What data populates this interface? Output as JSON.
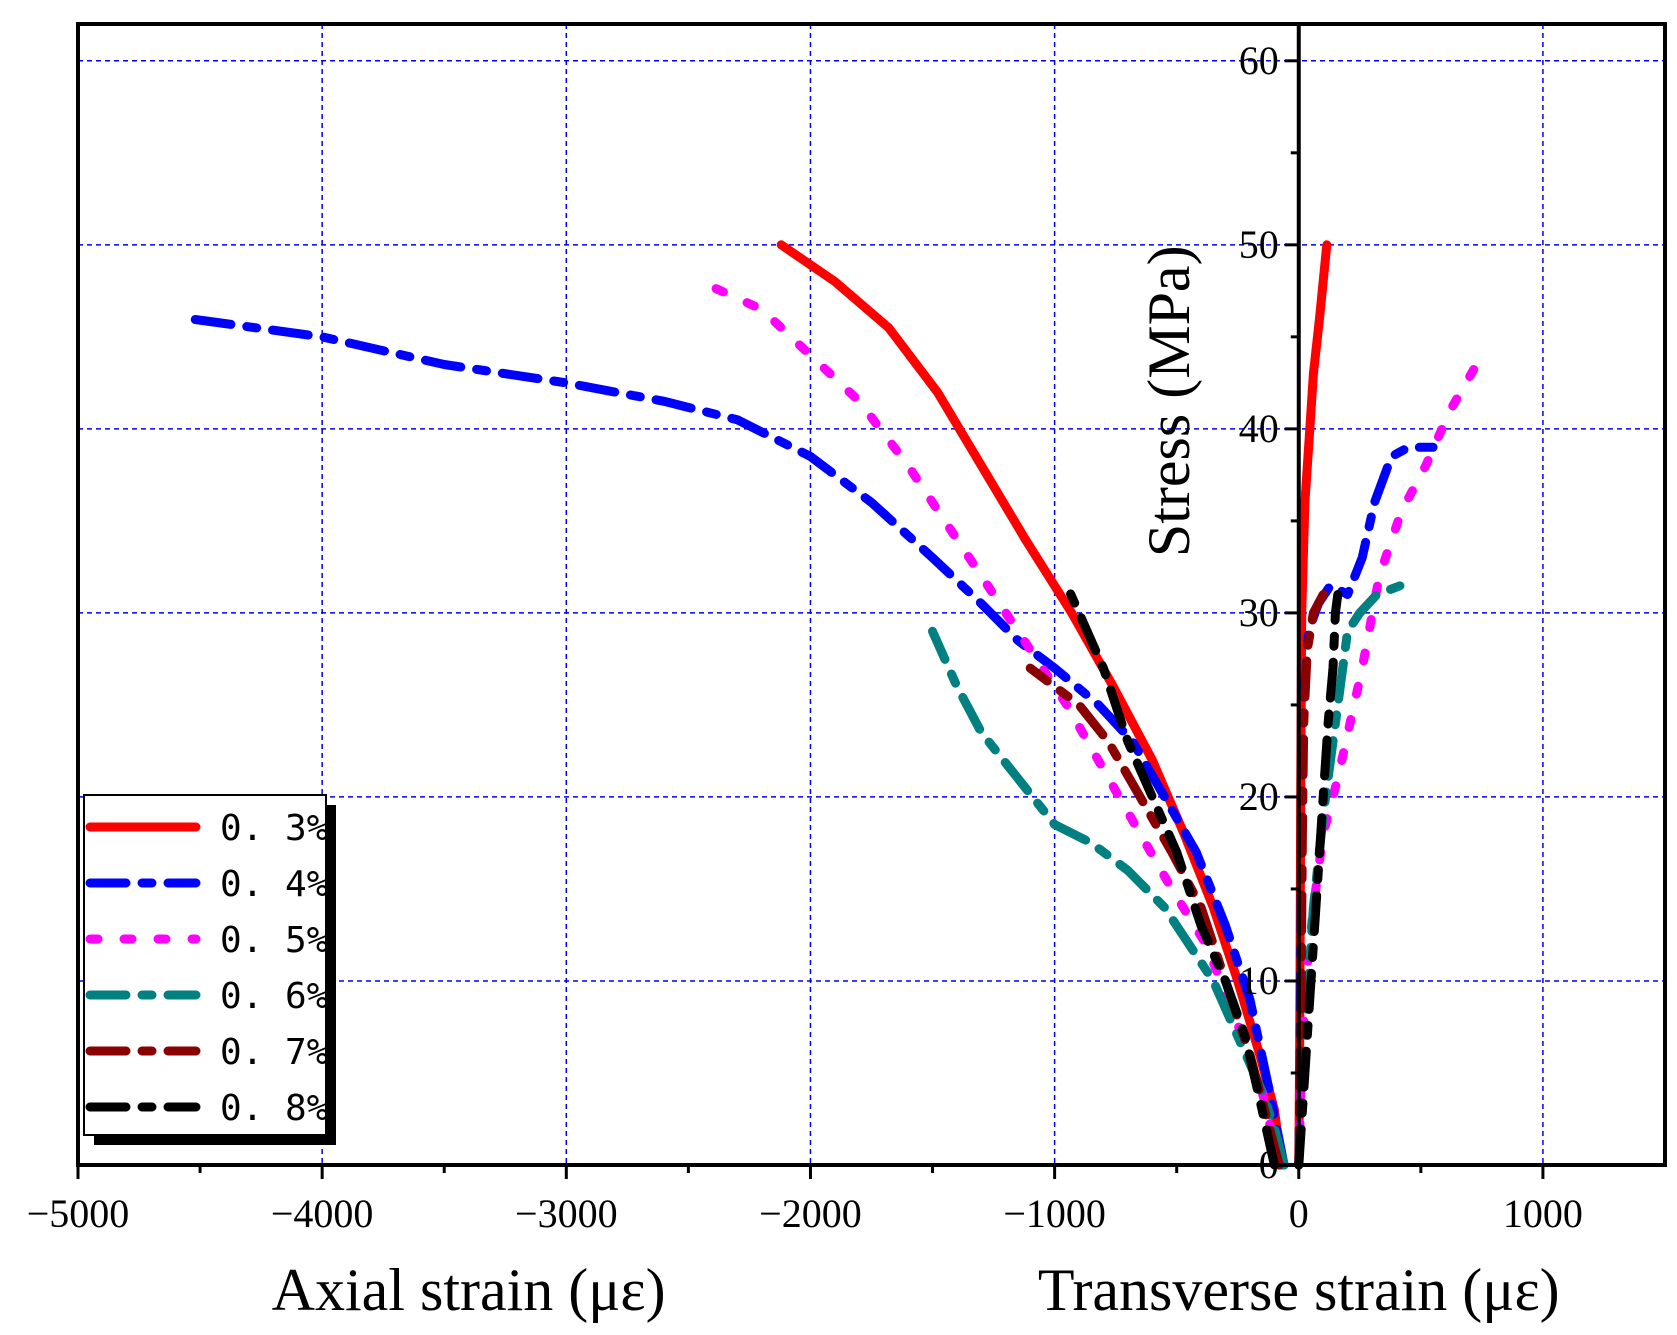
{
  "chart_data": {
    "type": "line",
    "xlim": [
      -5000,
      1500
    ],
    "ylim": [
      0,
      62
    ],
    "grid": true,
    "grid_color": "#0000ee",
    "x_ticks": [
      -5000,
      -4000,
      -3000,
      -2000,
      -1000,
      0,
      1000
    ],
    "x_tick_labels": [
      "−5000",
      "−4000",
      "−3000",
      "−2000",
      "−1000",
      "0",
      "1000"
    ],
    "y_ticks": [
      0,
      10,
      20,
      30,
      40,
      50,
      60
    ],
    "y_tick_labels": [
      "0",
      "10",
      "20",
      "30",
      "40",
      "50",
      "60"
    ],
    "xlabel_left": "Axial strain (με)",
    "xlabel_right": "Transverse strain (με)",
    "ylabel": "Stress (MPa)",
    "legend_position": "bottom-left",
    "series": [
      {
        "name": "0. 3%",
        "color": "#ff0000",
        "dash": "solid",
        "width": 9,
        "axial": [
          [
            -70,
            0
          ],
          [
            -100,
            3
          ],
          [
            -160,
            6
          ],
          [
            -250,
            10
          ],
          [
            -350,
            14
          ],
          [
            -470,
            18
          ],
          [
            -600,
            22
          ],
          [
            -760,
            26
          ],
          [
            -930,
            30
          ],
          [
            -1120,
            34
          ],
          [
            -1300,
            38
          ],
          [
            -1480,
            42
          ],
          [
            -1680,
            45.5
          ],
          [
            -1900,
            48
          ],
          [
            -2120,
            50
          ]
        ],
        "transverse": [
          [
            0,
            0
          ],
          [
            3,
            5
          ],
          [
            5,
            10
          ],
          [
            8,
            20
          ],
          [
            12,
            30
          ],
          [
            25,
            36
          ],
          [
            45,
            40
          ],
          [
            60,
            43
          ],
          [
            85,
            46
          ],
          [
            115,
            50
          ]
        ]
      },
      {
        "name": "0. 4%",
        "color": "#0000ff",
        "dash": "dash-dot",
        "width": 9,
        "axial": [
          [
            -60,
            0
          ],
          [
            -120,
            4
          ],
          [
            -200,
            9
          ],
          [
            -300,
            13
          ],
          [
            -420,
            17
          ],
          [
            -550,
            20
          ],
          [
            -680,
            23
          ],
          [
            -820,
            25
          ],
          [
            -1000,
            27
          ],
          [
            -1150,
            28.5
          ],
          [
            -1300,
            30.5
          ],
          [
            -1500,
            33
          ],
          [
            -1750,
            36
          ],
          [
            -2000,
            38.5
          ],
          [
            -2300,
            40.5
          ],
          [
            -2600,
            41.5
          ],
          [
            -3000,
            42.5
          ],
          [
            -3500,
            43.5
          ],
          [
            -4000,
            45
          ],
          [
            -4550,
            46
          ]
        ],
        "transverse": [
          [
            0,
            0
          ],
          [
            5,
            5
          ],
          [
            10,
            15
          ],
          [
            20,
            25
          ],
          [
            40,
            29
          ],
          [
            80,
            30.5
          ],
          [
            130,
            31.5
          ],
          [
            200,
            31
          ],
          [
            260,
            33
          ],
          [
            310,
            36
          ],
          [
            380,
            38.5
          ],
          [
            450,
            39
          ],
          [
            550,
            39
          ]
        ]
      },
      {
        "name": "0. 5%",
        "color": "#ff00ff",
        "dash": "dot",
        "width": 9,
        "axial": [
          [
            -80,
            0
          ],
          [
            -150,
            4
          ],
          [
            -260,
            8
          ],
          [
            -380,
            12
          ],
          [
            -520,
            15
          ],
          [
            -650,
            18
          ],
          [
            -800,
            21.5
          ],
          [
            -950,
            25
          ],
          [
            -1100,
            28
          ],
          [
            -1250,
            31
          ],
          [
            -1400,
            34
          ],
          [
            -1600,
            38
          ],
          [
            -1800,
            41.5
          ],
          [
            -2000,
            44
          ],
          [
            -2200,
            46.5
          ],
          [
            -2450,
            48
          ]
        ],
        "transverse": [
          [
            0,
            0
          ],
          [
            10,
            5
          ],
          [
            30,
            10
          ],
          [
            60,
            14
          ],
          [
            100,
            18
          ],
          [
            160,
            21
          ],
          [
            210,
            24
          ],
          [
            260,
            27
          ],
          [
            330,
            32
          ],
          [
            420,
            35.5
          ],
          [
            520,
            38
          ],
          [
            620,
            41
          ],
          [
            750,
            44
          ]
        ]
      },
      {
        "name": "0. 6%",
        "color": "#008080",
        "dash": "dash-dot",
        "width": 9,
        "axial": [
          [
            -60,
            0
          ],
          [
            -100,
            2
          ],
          [
            -150,
            4
          ],
          [
            -250,
            7
          ],
          [
            -350,
            10
          ],
          [
            -450,
            12
          ],
          [
            -550,
            14
          ],
          [
            -700,
            16
          ],
          [
            -850,
            17.5
          ],
          [
            -1000,
            18.5
          ],
          [
            -1150,
            21
          ],
          [
            -1300,
            23.5
          ],
          [
            -1400,
            26
          ],
          [
            -1500,
            29
          ]
        ],
        "transverse": [
          [
            0,
            0
          ],
          [
            10,
            3
          ],
          [
            30,
            8
          ],
          [
            60,
            14
          ],
          [
            100,
            19
          ],
          [
            150,
            24
          ],
          [
            200,
            29
          ],
          [
            250,
            30
          ],
          [
            320,
            31
          ],
          [
            420,
            31.5
          ]
        ]
      },
      {
        "name": "0. 7%",
        "color": "#8b0000",
        "dash": "dash-dot",
        "width": 9,
        "axial": [
          [
            -80,
            0
          ],
          [
            -120,
            2
          ],
          [
            -200,
            6
          ],
          [
            -300,
            10
          ],
          [
            -400,
            14
          ],
          [
            -520,
            17
          ],
          [
            -650,
            20
          ],
          [
            -780,
            23
          ],
          [
            -900,
            25
          ],
          [
            -1000,
            26
          ],
          [
            -1100,
            27
          ]
        ],
        "transverse": [
          [
            0,
            0
          ],
          [
            5,
            4
          ],
          [
            10,
            10
          ],
          [
            15,
            18
          ],
          [
            20,
            24
          ],
          [
            35,
            28
          ],
          [
            60,
            30
          ],
          [
            100,
            31
          ]
        ]
      },
      {
        "name": "0. 8%",
        "color": "#000000",
        "dash": "dash-dot",
        "width": 9,
        "axial": [
          [
            -100,
            0
          ],
          [
            -150,
            3
          ],
          [
            -220,
            7
          ],
          [
            -300,
            10
          ],
          [
            -400,
            13
          ],
          [
            -500,
            17
          ],
          [
            -600,
            20
          ],
          [
            -700,
            23
          ],
          [
            -800,
            27
          ],
          [
            -900,
            30
          ],
          [
            -950,
            31.5
          ]
        ],
        "transverse": [
          [
            0,
            0
          ],
          [
            20,
            4
          ],
          [
            40,
            8
          ],
          [
            70,
            14
          ],
          [
            100,
            20
          ],
          [
            120,
            24
          ],
          [
            140,
            27
          ],
          [
            150,
            30
          ],
          [
            160,
            31
          ]
        ]
      }
    ]
  }
}
